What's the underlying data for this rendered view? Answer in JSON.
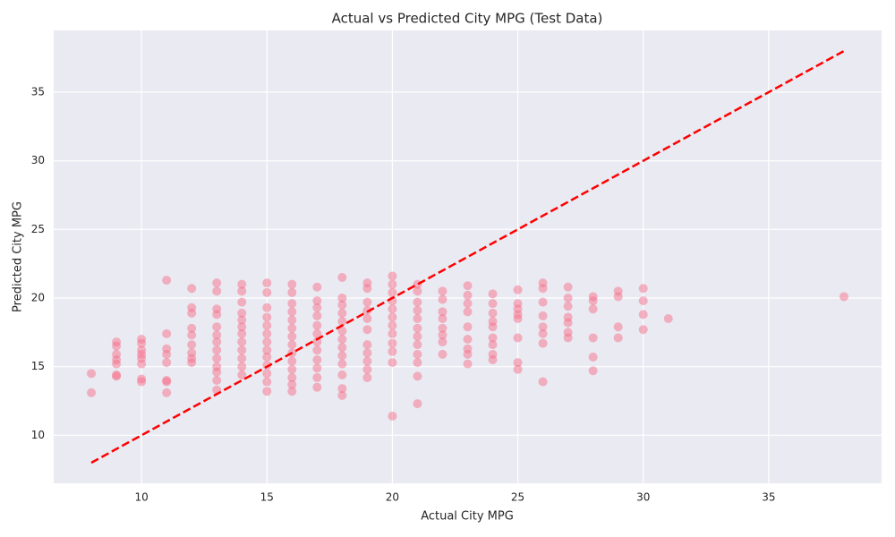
{
  "chart_data": {
    "type": "scatter",
    "title": "Actual vs Predicted City MPG (Test Data)",
    "xlabel": "Actual City MPG",
    "ylabel": "Predicted City MPG",
    "color": "#f5708a",
    "x": [
      8,
      8,
      9,
      9,
      9,
      9,
      9,
      9,
      9,
      10,
      10,
      10,
      10,
      10,
      10,
      10,
      10,
      11,
      11,
      11,
      11,
      11,
      11,
      11,
      11,
      12,
      12,
      12,
      12,
      12,
      12,
      12,
      12,
      12,
      13,
      13,
      13,
      13,
      13,
      13,
      13,
      13,
      13,
      13,
      13,
      13,
      13,
      14,
      14,
      14,
      14,
      14,
      14,
      14,
      14,
      14,
      14,
      14,
      14,
      15,
      15,
      15,
      15,
      15,
      15,
      15,
      15,
      15,
      15,
      15,
      15,
      15,
      16,
      16,
      16,
      16,
      16,
      16,
      16,
      16,
      16,
      16,
      16,
      16,
      16,
      16,
      17,
      17,
      17,
      17,
      17,
      17,
      17,
      17,
      17,
      17,
      17,
      17,
      18,
      18,
      18,
      18,
      18,
      18,
      18,
      18,
      18,
      18,
      18,
      18,
      18,
      19,
      19,
      19,
      19,
      19,
      19,
      19,
      19,
      19,
      19,
      19,
      20,
      20,
      20,
      20,
      20,
      20,
      20,
      20,
      20,
      20,
      20,
      20,
      21,
      21,
      21,
      21,
      21,
      21,
      21,
      21,
      21,
      21,
      21,
      21,
      22,
      22,
      22,
      22,
      22,
      22,
      22,
      22,
      23,
      23,
      23,
      23,
      23,
      23,
      23,
      23,
      23,
      24,
      24,
      24,
      24,
      24,
      24,
      24,
      24,
      24,
      25,
      25,
      25,
      25,
      25,
      25,
      25,
      25,
      26,
      26,
      26,
      26,
      26,
      26,
      26,
      26,
      27,
      27,
      27,
      27,
      27,
      27,
      27,
      28,
      28,
      28,
      28,
      28,
      28,
      29,
      29,
      29,
      29,
      30,
      30,
      30,
      30,
      31,
      38
    ],
    "values": [
      14.5,
      13.1,
      16.8,
      16.5,
      15.9,
      15.5,
      15.2,
      14.4,
      14.3,
      17.0,
      16.7,
      16.2,
      15.9,
      15.6,
      15.2,
      14.1,
      13.9,
      21.3,
      17.4,
      16.3,
      15.9,
      15.3,
      14.0,
      13.9,
      13.1,
      20.7,
      19.3,
      18.9,
      17.8,
      17.3,
      16.6,
      16.0,
      15.6,
      15.3,
      21.1,
      20.5,
      19.2,
      18.8,
      17.9,
      17.3,
      16.8,
      16.2,
      15.6,
      15.0,
      14.6,
      14.0,
      13.3,
      21.0,
      20.5,
      19.7,
      18.9,
      18.4,
      17.9,
      17.4,
      16.8,
      16.2,
      15.6,
      15.0,
      14.4,
      21.1,
      20.4,
      19.3,
      18.6,
      18.0,
      17.4,
      16.8,
      16.2,
      15.7,
      15.1,
      14.5,
      13.9,
      13.2,
      21.0,
      20.4,
      19.6,
      19.0,
      18.4,
      17.8,
      17.2,
      16.6,
      16.0,
      15.4,
      14.8,
      14.2,
      13.7,
      13.2,
      20.8,
      19.8,
      19.3,
      18.7,
      18.0,
      17.4,
      16.8,
      16.2,
      15.5,
      14.9,
      14.2,
      13.5,
      21.5,
      20.0,
      19.5,
      18.9,
      18.3,
      17.6,
      17.0,
      16.4,
      15.8,
      15.2,
      14.4,
      13.4,
      12.9,
      21.1,
      20.7,
      19.7,
      19.1,
      18.5,
      17.7,
      16.6,
      16.0,
      15.4,
      14.8,
      14.2,
      21.6,
      21.0,
      20.4,
      19.8,
      19.2,
      18.6,
      18.0,
      17.4,
      16.7,
      16.1,
      15.3,
      11.4,
      21.0,
      20.5,
      19.7,
      19.1,
      18.5,
      17.8,
      17.2,
      16.6,
      15.9,
      15.3,
      14.3,
      12.3,
      20.5,
      19.9,
      19.0,
      18.5,
      17.8,
      17.3,
      16.8,
      15.9,
      20.9,
      20.2,
      19.6,
      19.0,
      17.9,
      17.0,
      16.3,
      15.9,
      15.2,
      20.3,
      19.6,
      18.9,
      18.3,
      17.9,
      17.1,
      16.6,
      15.9,
      15.5,
      20.6,
      19.6,
      19.2,
      18.8,
      18.5,
      17.1,
      15.3,
      14.8,
      21.1,
      20.7,
      19.7,
      18.7,
      17.9,
      17.4,
      16.7,
      13.9,
      20.8,
      20.0,
      19.4,
      18.6,
      18.2,
      17.5,
      17.1,
      20.1,
      19.8,
      19.2,
      17.1,
      15.7,
      14.7,
      20.5,
      20.1,
      17.9,
      17.1,
      20.7,
      19.8,
      18.8,
      17.7,
      18.5,
      20.1
    ],
    "reference_line": {
      "x": [
        8,
        38
      ],
      "values": [
        8,
        38
      ],
      "color": "#ff0000",
      "dashed": true
    },
    "xlim": [
      6.5,
      39.5
    ],
    "ylim": [
      6.5,
      39.5
    ],
    "xticks": [
      10,
      15,
      20,
      25,
      30,
      35
    ],
    "yticks": [
      10,
      15,
      20,
      25,
      30,
      35
    ],
    "grid": true
  }
}
